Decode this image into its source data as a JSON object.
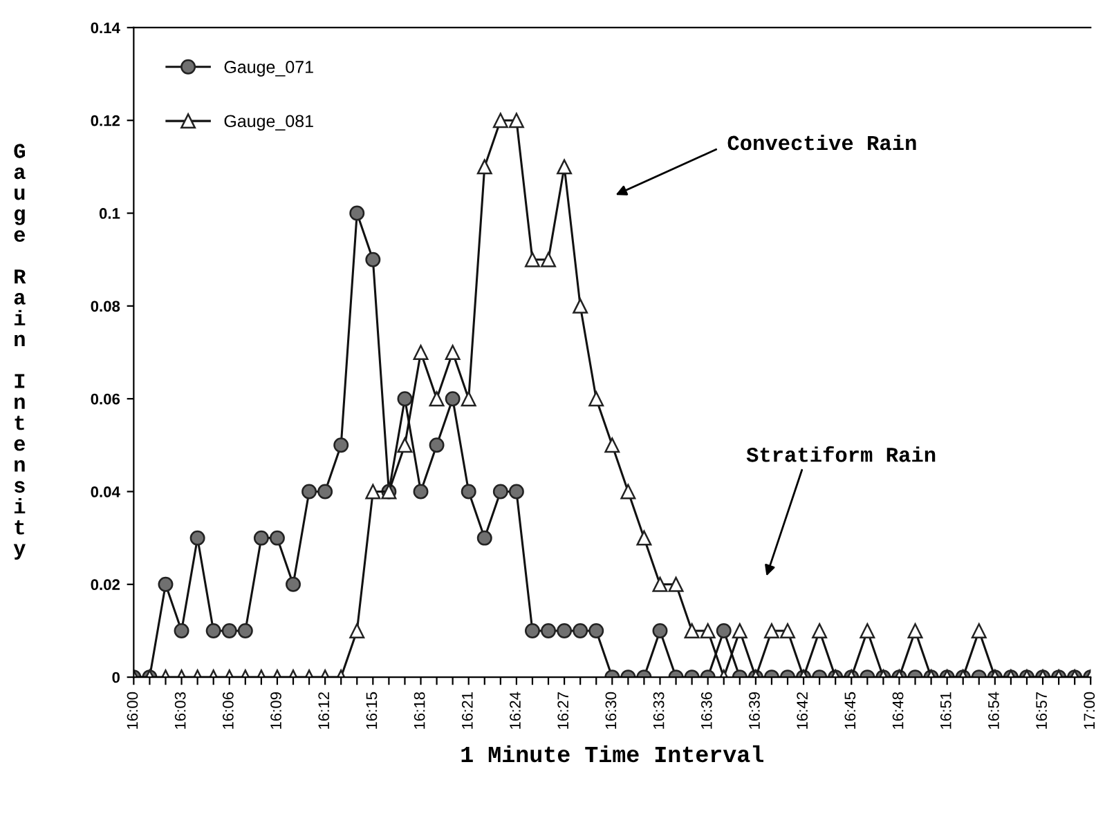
{
  "chart_data": {
    "type": "line",
    "xlabel": "1 Minute Time Interval",
    "ylabel": "Gauge Rain Intensity",
    "categories": [
      "16:00",
      null,
      null,
      "16:03",
      null,
      null,
      "16:06",
      null,
      null,
      "16:09",
      null,
      null,
      "16:12",
      null,
      null,
      "16:15",
      null,
      null,
      "16:18",
      null,
      null,
      "16:21",
      null,
      null,
      "16:24",
      null,
      null,
      "16:27",
      null,
      null,
      "16:30",
      null,
      null,
      "16:33",
      null,
      null,
      "16:36",
      null,
      null,
      "16:39",
      null,
      null,
      "16:42",
      null,
      null,
      "16:45",
      null,
      null,
      "16:48",
      null,
      null,
      "16:51",
      null,
      null,
      "16:54",
      null,
      null,
      "16:57",
      null,
      null,
      "17:00"
    ],
    "series": [
      {
        "name": "Gauge_071",
        "color": "#707070",
        "marker": "circle",
        "values": [
          0,
          0,
          0.02,
          0.01,
          0.03,
          0.01,
          0.01,
          0.01,
          0.03,
          0.03,
          0.02,
          0.04,
          0.04,
          0.05,
          0.1,
          0.09,
          0.04,
          0.06,
          0.04,
          0.05,
          0.06,
          0.04,
          0.03,
          0.04,
          0.04,
          0.01,
          0.01,
          0.01,
          0.01,
          0.01,
          0,
          0,
          0,
          0.01,
          0,
          0,
          0,
          0.01,
          0,
          0,
          0,
          0,
          0,
          0,
          0,
          0,
          0,
          0,
          0,
          0,
          0,
          0,
          0,
          0,
          0,
          0,
          0,
          0,
          0,
          0,
          0
        ]
      },
      {
        "name": "Gauge_081",
        "color": "#ffffff",
        "marker": "triangle",
        "values": [
          0,
          0,
          0,
          0,
          0,
          0,
          0,
          0,
          0,
          0,
          0,
          0,
          0,
          0,
          0.01,
          0.04,
          0.04,
          0.05,
          0.07,
          0.06,
          0.07,
          0.06,
          0.11,
          0.12,
          0.12,
          0.09,
          0.09,
          0.11,
          0.08,
          0.06,
          0.05,
          0.04,
          0.03,
          0.02,
          0.02,
          0.01,
          0.01,
          0,
          0.01,
          0,
          0.01,
          0.01,
          0,
          0.01,
          0,
          0,
          0.01,
          0,
          0,
          0.01,
          0,
          0,
          0,
          0.01,
          0,
          0,
          0,
          0,
          0,
          0,
          0
        ]
      }
    ],
    "ylim": [
      0,
      0.14
    ],
    "yticks": [
      0,
      0.02,
      0.04,
      0.06,
      0.08,
      0.1,
      0.12,
      0.14
    ],
    "annotations": [
      "Convective Rain",
      "Stratiform Rain"
    ],
    "legend": "top left",
    "grid": false
  }
}
